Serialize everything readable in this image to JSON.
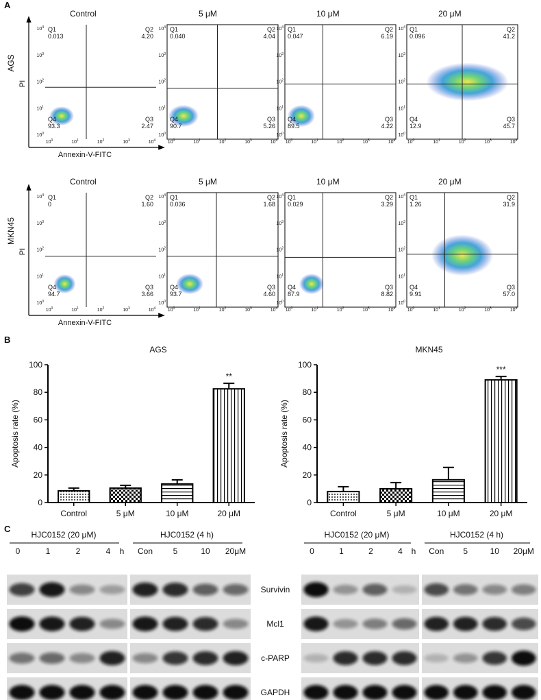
{
  "panel_labels": [
    "A",
    "B",
    "C"
  ],
  "panel_a": {
    "axis_x": "Annexin-V-FITC",
    "axis_y": "PI",
    "tick_base": "10",
    "tick_exponents": [
      "0",
      "1",
      "2",
      "3",
      "4"
    ],
    "quadrant_names": [
      "Q1",
      "Q2",
      "Q3",
      "Q4"
    ],
    "rows": [
      {
        "cell_line": "AGS",
        "plots": [
          {
            "title": "Control",
            "quadrants": [
              "0.013",
              "4.20",
              "2.47",
              "93.3"
            ]
          },
          {
            "title": "5 μM",
            "quadrants": [
              "0.040",
              "4.04",
              "5.26",
              "90.7"
            ]
          },
          {
            "title": "10 μM",
            "quadrants": [
              "0.047",
              "6.19",
              "4.22",
              "89.5"
            ]
          },
          {
            "title": "20 μM",
            "quadrants": [
              "0.096",
              "41.2",
              "45.7",
              "12.9"
            ]
          }
        ]
      },
      {
        "cell_line": "MKN45",
        "plots": [
          {
            "title": "Control",
            "quadrants": [
              "0",
              "1.60",
              "3.66",
              "94.7"
            ]
          },
          {
            "title": "5 μM",
            "quadrants": [
              "0.036",
              "1.68",
              "4.60",
              "93.7"
            ]
          },
          {
            "title": "10 μM",
            "quadrants": [
              "0.029",
              "3.29",
              "8.82",
              "87.9"
            ]
          },
          {
            "title": "20 μM",
            "quadrants": [
              "1.26",
              "31.9",
              "57.0",
              "9.91"
            ]
          }
        ]
      }
    ]
  },
  "chart_data": [
    {
      "type": "bar",
      "title": "AGS",
      "ylabel": "Apoptosis rate (%)",
      "categories": [
        "Control",
        "5 μM",
        "10 μM",
        "20 μM"
      ],
      "values": [
        8.5,
        10.5,
        13.5,
        82.5
      ],
      "errors": [
        2,
        2,
        3,
        4
      ],
      "color": "#000000",
      "ylim": [
        0,
        100
      ],
      "yticks": [
        0,
        20,
        40,
        60,
        80,
        100
      ],
      "significance": [
        {
          "category": "20 μM",
          "label": "**"
        }
      ]
    },
    {
      "type": "bar",
      "title": "MKN45",
      "ylabel": "Apoptosis rate (%)",
      "categories": [
        "Control",
        "5 μM",
        "10 μM",
        "20 μM"
      ],
      "values": [
        8,
        10,
        16.5,
        89
      ],
      "errors": [
        3.5,
        4.5,
        9,
        2.5
      ],
      "color": "#000000",
      "ylim": [
        0,
        100
      ],
      "yticks": [
        0,
        20,
        40,
        60,
        80,
        100
      ],
      "significance": [
        {
          "category": "20 μM",
          "label": "***"
        }
      ]
    }
  ],
  "panel_c": {
    "proteins": [
      "Survivin",
      "Mcl1",
      "c-PARP",
      "GAPDH"
    ],
    "blots": [
      {
        "groups": [
          {
            "title": "HJC0152 (20 μM)",
            "lanes": [
              "0",
              "1",
              "2",
              "4"
            ],
            "unit": "h"
          },
          {
            "title": "HJC0152 (4 h)",
            "lanes": [
              "Con",
              "5",
              "10",
              "20μM"
            ]
          }
        ]
      },
      {
        "groups": [
          {
            "title": "HJC0152 (20 μM)",
            "lanes": [
              "0",
              "1",
              "2",
              "4"
            ],
            "unit": "h"
          },
          {
            "title": "HJC0152 (4 h)",
            "lanes": [
              "Con",
              "5",
              "10",
              "20μM"
            ]
          }
        ]
      }
    ]
  }
}
